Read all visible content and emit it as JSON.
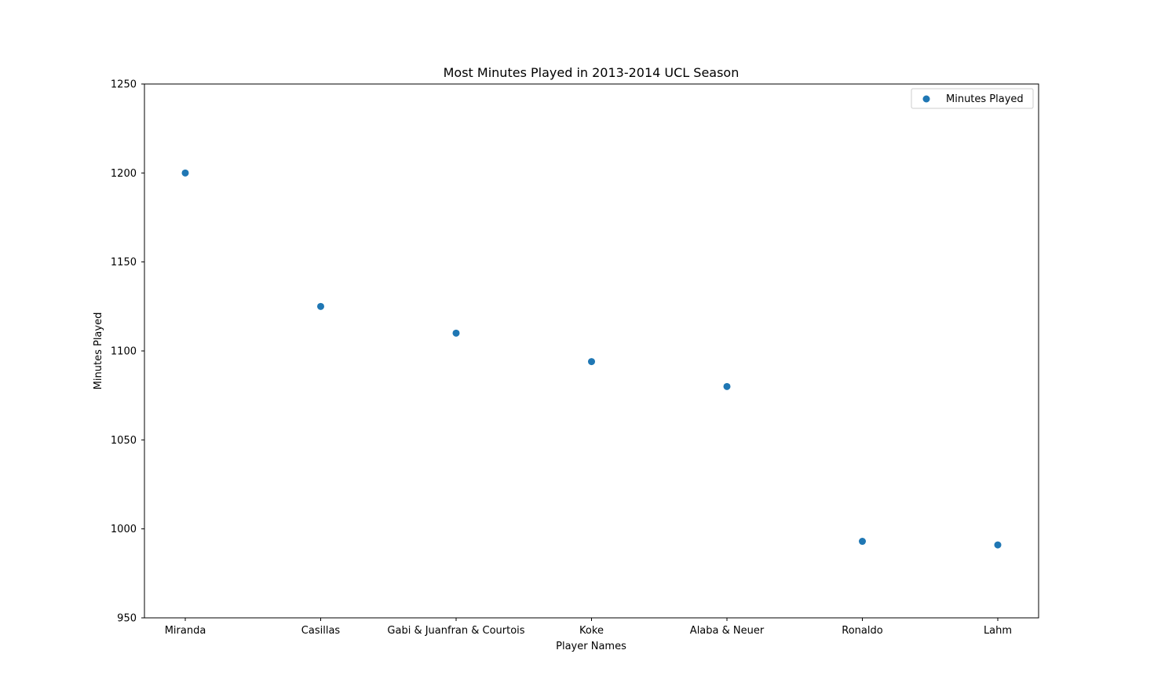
{
  "chart_data": {
    "type": "scatter",
    "title": "Most Minutes Played in 2013-2014 UCL Season",
    "xlabel": "Player Names",
    "ylabel": "Minutes Played",
    "categories": [
      "Miranda",
      "Casillas",
      "Gabi & Juanfran & Courtois",
      "Koke",
      "Alaba & Neuer",
      "Ronaldo",
      "Lahm"
    ],
    "series": [
      {
        "name": "Minutes Played",
        "values": [
          1200,
          1125,
          1110,
          1094,
          1080,
          993,
          991
        ]
      }
    ],
    "ylim": [
      950,
      1250
    ],
    "yticks": [
      950,
      1000,
      1050,
      1100,
      1150,
      1200,
      1250
    ],
    "grid": false,
    "legend_position": "top-right",
    "colors": {
      "series": "#1f77b4",
      "axes": "#000000",
      "background": "#ffffff"
    }
  }
}
